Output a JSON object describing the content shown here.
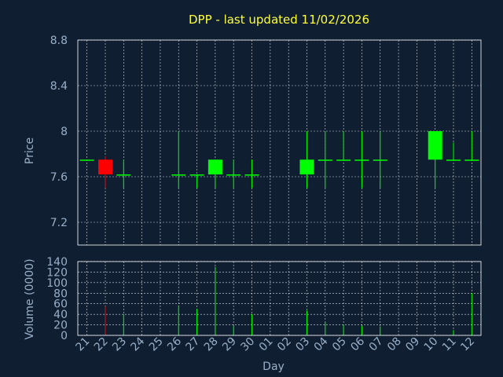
{
  "chart_data": {
    "type": "candlestick",
    "title": "DPP - last updated 11/02/2026",
    "xlabel": "Day",
    "price_panel": {
      "ylabel": "Price",
      "ylim": [
        7.0,
        8.8
      ],
      "yticks": [
        "8.8",
        "8.4",
        "8",
        "7.6",
        "7.2"
      ],
      "ytick_values": [
        8.8,
        8.4,
        8.0,
        7.6,
        7.2
      ],
      "grid": true
    },
    "volume_panel": {
      "ylabel": "Volume (0000)",
      "ylim": [
        0,
        140
      ],
      "yticks": [
        "140",
        "120",
        "100",
        "80",
        "60",
        "40",
        "20",
        "0"
      ],
      "ytick_values": [
        140,
        120,
        100,
        80,
        60,
        40,
        20,
        0
      ],
      "grid": true
    },
    "x_labels": [
      "21",
      "22",
      "23",
      "24",
      "25",
      "26",
      "27",
      "28",
      "29",
      "30",
      "01",
      "02",
      "03",
      "04",
      "05",
      "06",
      "07",
      "08",
      "09",
      "10",
      "11",
      "12"
    ],
    "candles": [
      {
        "x": 0,
        "open": 7.75,
        "high": 7.75,
        "low": 7.75,
        "close": 7.75,
        "volume": 0
      },
      {
        "x": 1,
        "open": 7.75,
        "high": 7.78,
        "low": 7.5,
        "close": 7.62,
        "volume": 55
      },
      {
        "x": 2,
        "open": 7.62,
        "high": 7.75,
        "low": 7.5,
        "close": 7.62,
        "volume": 40
      },
      {
        "x": 5,
        "open": 7.62,
        "high": 8.0,
        "low": 7.5,
        "close": 7.62,
        "volume": 57
      },
      {
        "x": 6,
        "open": 7.62,
        "high": 7.62,
        "low": 7.5,
        "close": 7.62,
        "volume": 50
      },
      {
        "x": 7,
        "open": 7.62,
        "high": 7.75,
        "low": 7.5,
        "close": 7.75,
        "volume": 130
      },
      {
        "x": 8,
        "open": 7.62,
        "high": 7.75,
        "low": 7.5,
        "close": 7.62,
        "volume": 18
      },
      {
        "x": 9,
        "open": 7.62,
        "high": 7.75,
        "low": 7.5,
        "close": 7.62,
        "volume": 40
      },
      {
        "x": 12,
        "open": 7.62,
        "high": 8.0,
        "low": 7.5,
        "close": 7.75,
        "volume": 47
      },
      {
        "x": 13,
        "open": 7.75,
        "high": 8.0,
        "low": 7.5,
        "close": 7.75,
        "volume": 25
      },
      {
        "x": 14,
        "open": 7.75,
        "high": 8.0,
        "low": 7.75,
        "close": 7.75,
        "volume": 20
      },
      {
        "x": 15,
        "open": 7.75,
        "high": 8.0,
        "low": 7.5,
        "close": 7.75,
        "volume": 18
      },
      {
        "x": 16,
        "open": 7.75,
        "high": 8.0,
        "low": 7.5,
        "close": 7.75,
        "volume": 17
      },
      {
        "x": 19,
        "open": 7.75,
        "high": 8.0,
        "low": 7.5,
        "close": 8.0,
        "volume": 0
      },
      {
        "x": 20,
        "open": 7.75,
        "high": 7.9,
        "low": 7.75,
        "close": 7.75,
        "volume": 10
      },
      {
        "x": 21,
        "open": 7.75,
        "high": 8.0,
        "low": 7.75,
        "close": 7.75,
        "volume": 80
      }
    ],
    "colors": {
      "background": "#0f1e31",
      "up": "#00ff00",
      "down": "#ff0000",
      "title": "#ffff33",
      "text": "#9ab0c8",
      "grid": "#ffffff"
    }
  }
}
